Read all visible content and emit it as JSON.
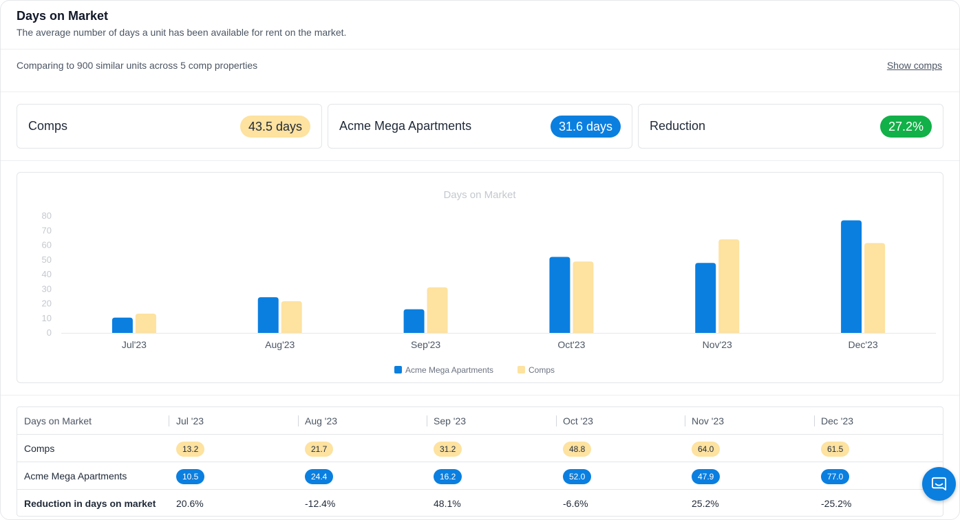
{
  "header": {
    "title": "Days on Market",
    "subtitle": "The average number of days a unit has been available for rent on the market."
  },
  "compare": {
    "text": "Comparing to 900 similar units across 5 comp properties",
    "show_comps_label": "Show comps"
  },
  "stats": [
    {
      "label": "Comps",
      "value": "43.5 days",
      "color": "#fde2a0"
    },
    {
      "label": "Acme Mega Apartments",
      "value": "31.6 days",
      "color": "#0a7fe0"
    },
    {
      "label": "Reduction",
      "value": "27.2%",
      "color": "#12b048"
    }
  ],
  "chart_data": {
    "type": "bar",
    "title": "Days on Market",
    "categories": [
      "Jul'23",
      "Aug'23",
      "Sep'23",
      "Oct'23",
      "Nov'23",
      "Dec'23"
    ],
    "series": [
      {
        "name": "Acme Mega Apartments",
        "values": [
          10.5,
          24.4,
          16.2,
          52.0,
          47.9,
          77.0
        ],
        "color": "#0a7fe0"
      },
      {
        "name": "Comps",
        "values": [
          13.2,
          21.7,
          31.2,
          48.8,
          64.0,
          61.5
        ],
        "color": "#fde2a0"
      }
    ],
    "ylim": [
      0,
      80
    ],
    "yticks": [
      "0",
      "10",
      "20",
      "30",
      "40",
      "50",
      "60",
      "70",
      "80"
    ],
    "legend": "bottom",
    "grid": false
  },
  "table": {
    "header": [
      "Days on Market",
      "Jul '23",
      "Aug '23",
      "Sep '23",
      "Oct '23",
      "Nov '23",
      "Dec '23"
    ],
    "rows": [
      {
        "label": "Comps",
        "values": [
          "13.2",
          "21.7",
          "31.2",
          "48.8",
          "64.0",
          "61.5"
        ]
      },
      {
        "label": "Acme Mega Apartments",
        "values": [
          "10.5",
          "24.4",
          "16.2",
          "52.0",
          "47.9",
          "77.0"
        ]
      },
      {
        "label": "Reduction in days on market",
        "values": [
          "20.6%",
          "-12.4%",
          "48.1%",
          "-6.6%",
          "25.2%",
          "-25.2%"
        ]
      }
    ]
  },
  "chat_icon": "chat-icon"
}
